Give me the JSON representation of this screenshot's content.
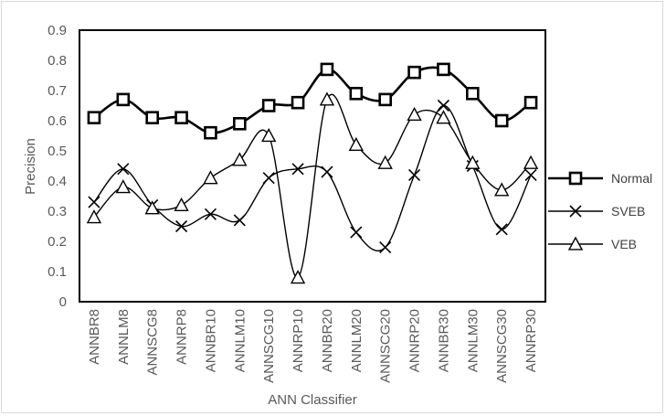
{
  "chart_data": {
    "type": "line",
    "title": "",
    "xlabel": "ANN Classifier",
    "ylabel": "Precision",
    "ylim": [
      0,
      0.9
    ],
    "yticks": [
      "0",
      "0.1",
      "0.2",
      "0.3",
      "0.4",
      "0.5",
      "0.6",
      "0.7",
      "0.8",
      "0.9"
    ],
    "categories": [
      "ANNBR8",
      "ANNLM8",
      "ANNSCG8",
      "ANNRP8",
      "ANNBR10",
      "ANNLM10",
      "ANNSCG10",
      "ANNRP10",
      "ANNBR20",
      "ANNLM20",
      "ANNSCG20",
      "ANNRP20",
      "ANNBR30",
      "ANNLM30",
      "ANNSCG30",
      "ANNRP30"
    ],
    "series": [
      {
        "name": "Normal",
        "marker": "square",
        "values": [
          0.61,
          0.67,
          0.61,
          0.61,
          0.56,
          0.59,
          0.65,
          0.66,
          0.77,
          0.69,
          0.67,
          0.76,
          0.77,
          0.69,
          0.6,
          0.66
        ]
      },
      {
        "name": "SVEB",
        "marker": "x",
        "values": [
          0.33,
          0.44,
          0.32,
          0.25,
          0.29,
          0.27,
          0.41,
          0.44,
          0.43,
          0.23,
          0.18,
          0.42,
          0.65,
          0.45,
          0.24,
          0.42
        ]
      },
      {
        "name": "VEB",
        "marker": "triangle",
        "values": [
          0.28,
          0.38,
          0.31,
          0.32,
          0.41,
          0.47,
          0.55,
          0.08,
          0.67,
          0.52,
          0.46,
          0.62,
          0.61,
          0.46,
          0.37,
          0.46
        ]
      }
    ],
    "grid": false,
    "legend_position": "right",
    "colors": {
      "line": "#000000",
      "axis_text": "#595959",
      "frame": "#d9d9d9"
    }
  }
}
